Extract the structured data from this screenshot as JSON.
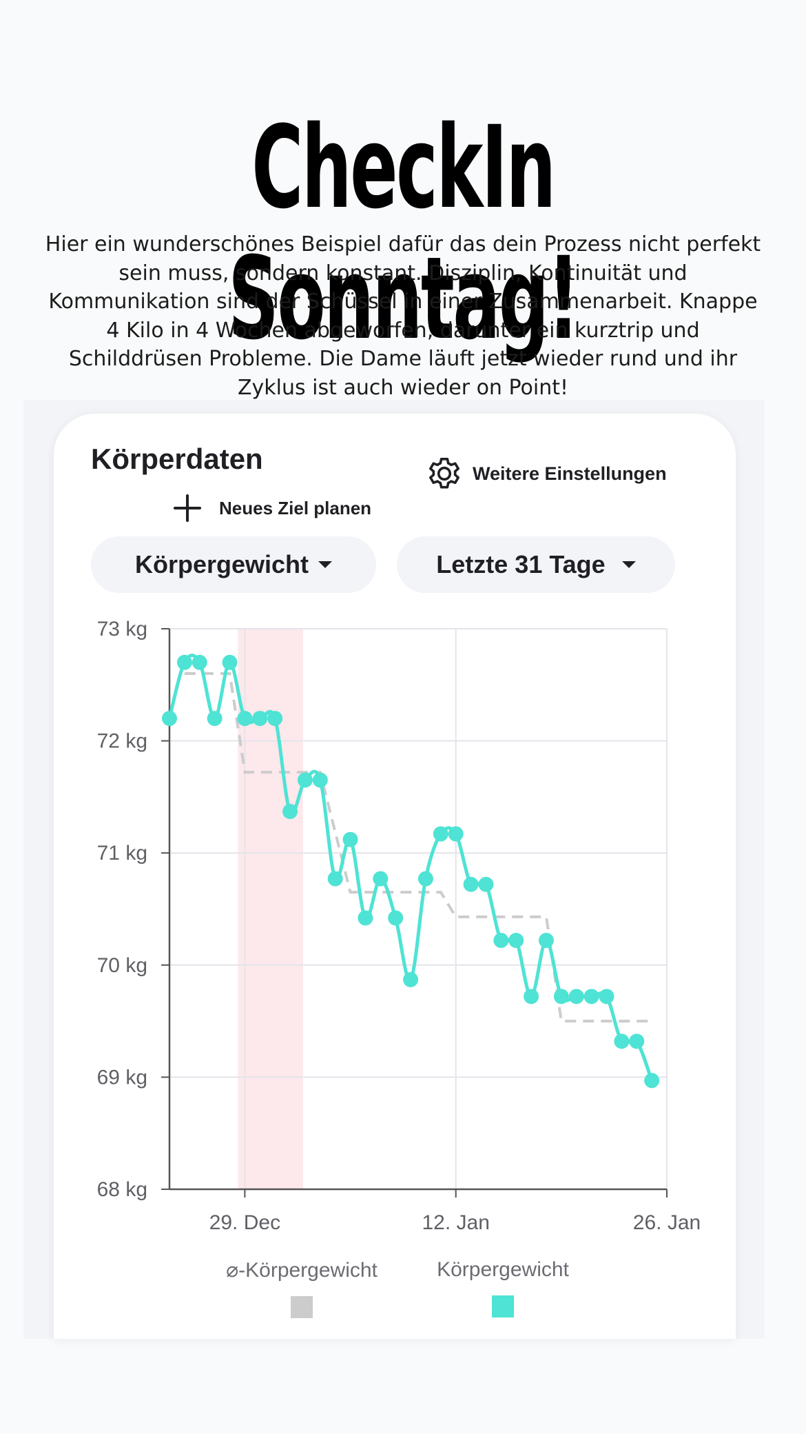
{
  "post": {
    "headline": "CheckIn Sonntag!",
    "caption": "Hier ein wunderschönes Beispiel dafür das dein Prozess nicht perfekt sein muss, sondern konstant. Disziplin, Kontinuität und Kommunikation sind der Schüssel in einer Zusammenarbeit. Knappe 4 Kilo in 4 Wochen abgeworfen, darunter ein kurztrip und Schilddrüsen Probleme. Die Dame läuft jetzt wieder rund und ihr Zyklus ist auch wieder on Point!"
  },
  "card": {
    "title": "Körperdaten",
    "settings_label": "Weitere Einstellungen",
    "settings_icon": "gear-icon",
    "new_goal_label": "Neues Ziel planen",
    "new_goal_icon": "plus-icon",
    "metric_select": "Körpergewicht",
    "range_select": "Letzte 31 Tage"
  },
  "colors": {
    "weight": "#4ee3d4",
    "average": "#cccccc",
    "highlight": "#fde8ec",
    "text": "#1f1f24"
  },
  "chart_data": {
    "type": "line",
    "y_unit": "kg",
    "ylim": [
      68,
      73
    ],
    "y_ticks": [
      {
        "value": 73,
        "label": "73 kg"
      },
      {
        "value": 72,
        "label": "72 kg"
      },
      {
        "value": 71,
        "label": "71 kg"
      },
      {
        "value": 70,
        "label": "70 kg"
      },
      {
        "value": 69,
        "label": "69 kg"
      },
      {
        "value": 68,
        "label": "68 kg"
      }
    ],
    "x_start": "2023-12-24",
    "x_end": "2024-01-26",
    "x_ticks": [
      {
        "date": "2023-12-29",
        "label": "29. Dec"
      },
      {
        "date": "2024-01-12",
        "label": "12. Jan"
      },
      {
        "date": "2024-01-26",
        "label": "26. Jan"
      }
    ],
    "highlight_range": [
      "2023-12-29",
      "2024-01-02"
    ],
    "grid": true,
    "legend_position": "bottom",
    "series": [
      {
        "name": "Körpergewicht",
        "key": "weight",
        "points": [
          [
            "2023-12-24",
            72.2
          ],
          [
            "2023-12-25",
            72.7
          ],
          [
            "2023-12-26",
            72.7
          ],
          [
            "2023-12-27",
            72.2
          ],
          [
            "2023-12-28",
            72.7
          ],
          [
            "2023-12-29",
            72.2
          ],
          [
            "2023-12-30",
            72.2
          ],
          [
            "2023-12-31",
            72.2
          ],
          [
            "2024-01-01",
            71.37
          ],
          [
            "2024-01-02",
            71.65
          ],
          [
            "2024-01-03",
            71.65
          ],
          [
            "2024-01-04",
            70.77
          ],
          [
            "2024-01-05",
            71.12
          ],
          [
            "2024-01-06",
            70.42
          ],
          [
            "2024-01-07",
            70.77
          ],
          [
            "2024-01-08",
            70.42
          ],
          [
            "2024-01-09",
            69.87
          ],
          [
            "2024-01-10",
            70.77
          ],
          [
            "2024-01-11",
            71.17
          ],
          [
            "2024-01-12",
            71.17
          ],
          [
            "2024-01-13",
            70.72
          ],
          [
            "2024-01-14",
            70.72
          ],
          [
            "2024-01-15",
            70.22
          ],
          [
            "2024-01-16",
            70.22
          ],
          [
            "2024-01-17",
            69.72
          ],
          [
            "2024-01-18",
            70.22
          ],
          [
            "2024-01-19",
            69.72
          ],
          [
            "2024-01-20",
            69.72
          ],
          [
            "2024-01-21",
            69.72
          ],
          [
            "2024-01-22",
            69.72
          ],
          [
            "2024-01-23",
            69.32
          ],
          [
            "2024-01-24",
            69.32
          ],
          [
            "2024-01-25",
            68.97
          ]
        ]
      },
      {
        "name": "⌀-Körpergewicht",
        "key": "average",
        "points": [
          [
            "2023-12-25",
            72.6
          ],
          [
            "2023-12-28",
            72.6
          ],
          [
            "2023-12-29",
            71.72
          ],
          [
            "2024-01-03",
            71.72
          ],
          [
            "2024-01-05",
            70.65
          ],
          [
            "2024-01-11",
            70.65
          ],
          [
            "2024-01-12",
            70.43
          ],
          [
            "2024-01-18",
            70.43
          ],
          [
            "2024-01-19",
            69.5
          ],
          [
            "2024-01-25",
            69.5
          ]
        ]
      }
    ]
  }
}
